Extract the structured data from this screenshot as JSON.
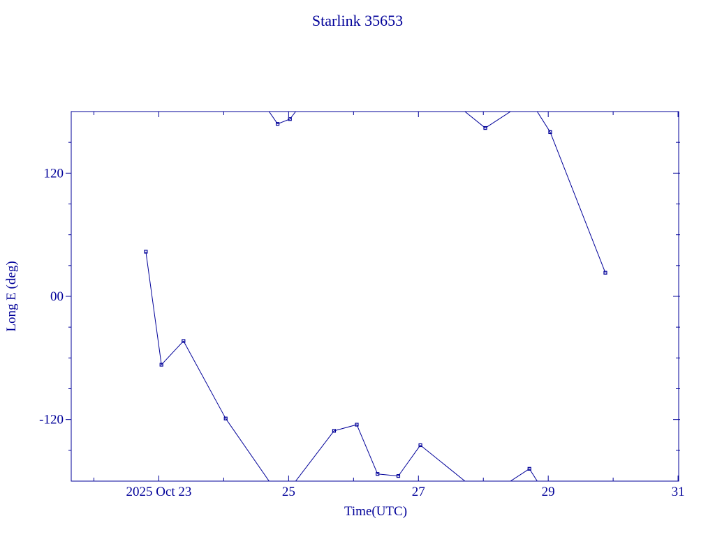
{
  "chart_data": {
    "type": "line",
    "title": "Starlink 35653",
    "x_label": "Time(UTC)",
    "y_label": "Long E (deg)",
    "color": "#000099",
    "xlim": [
      21.65,
      31.01
    ],
    "xticks": [
      {
        "value": 23,
        "label": "2025 Oct 23"
      },
      25,
      27,
      29,
      31
    ],
    "xminorticks": [
      22,
      24,
      26,
      28,
      30
    ],
    "ylim": [
      -180,
      180
    ],
    "yticks": [
      -120,
      {
        "value": 0,
        "label": "00"
      },
      120
    ],
    "yminorticks": [
      -150,
      -90,
      -60,
      -30,
      30,
      60,
      90,
      150
    ],
    "wrap_period": 360,
    "series": [
      {
        "name": "Starlink 35653",
        "color": "#000099",
        "x": [
          22.8,
          23.04,
          23.38,
          24.03,
          24.83,
          25.02,
          25.7,
          26.05,
          26.37,
          26.69,
          27.03,
          28.03,
          28.71,
          29.03,
          29.88
        ],
        "values": [
          43.5,
          -66.6,
          -43.5,
          -119,
          168,
          172.7,
          -131,
          -125,
          -173,
          -175,
          -145,
          164,
          -168,
          160,
          23
        ]
      }
    ]
  }
}
